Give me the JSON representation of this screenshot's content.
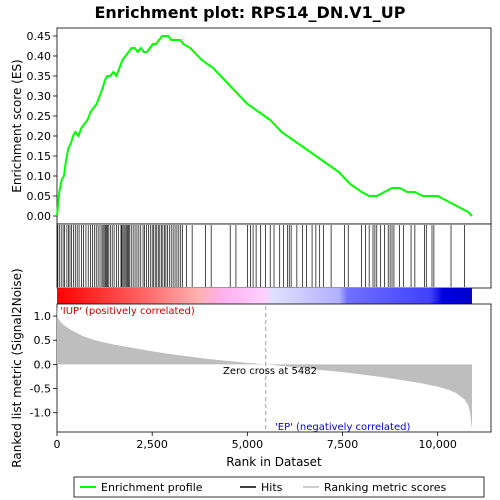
{
  "chart_data": {
    "type": "line",
    "title": "Enrichment plot: RPS14_DN.V1_UP",
    "colors": {
      "enrichment_line": "#00ff00",
      "hits": "#000000",
      "metric_fill": "#bebebe",
      "zero_line": "#a0a0a0",
      "pos_label": "#cc0000",
      "neg_label": "#0000cc"
    },
    "es_panel": {
      "ylabel": "Enrichment score (ES)",
      "ylim": [
        -0.02,
        0.47
      ],
      "yticks": [
        "0.00",
        "0.05",
        "0.10",
        "0.15",
        "0.20",
        "0.25",
        "0.30",
        "0.35",
        "0.40",
        "0.45"
      ],
      "ytick_values": [
        0.0,
        0.05,
        0.1,
        0.15,
        0.2,
        0.25,
        0.3,
        0.35,
        0.4,
        0.45
      ],
      "series": [
        {
          "x": [
            0,
            60,
            120,
            180,
            240,
            300,
            360,
            420,
            480,
            560,
            640,
            720,
            800,
            880,
            960,
            1040,
            1120,
            1200,
            1260,
            1320,
            1400,
            1480,
            1560,
            1640,
            1720,
            1800,
            1880,
            1960,
            2040,
            2120,
            2200,
            2280,
            2360,
            2440,
            2520,
            2600,
            2680,
            2760,
            2840,
            2920,
            3000,
            3080,
            3160,
            3240,
            3320,
            3500,
            3800,
            4100,
            4400,
            4700,
            5000,
            5300,
            5600,
            5900,
            6200,
            6500,
            6800,
            7100,
            7400,
            7700,
            8000,
            8200,
            8400,
            8600,
            8800,
            9000,
            9200,
            9400,
            9600,
            9800,
            10000,
            10200,
            10400,
            10600,
            10800,
            10900
          ],
          "y": [
            0.0,
            0.06,
            0.09,
            0.1,
            0.14,
            0.17,
            0.18,
            0.2,
            0.21,
            0.2,
            0.22,
            0.23,
            0.24,
            0.26,
            0.27,
            0.28,
            0.3,
            0.32,
            0.34,
            0.35,
            0.35,
            0.36,
            0.35,
            0.37,
            0.39,
            0.4,
            0.41,
            0.42,
            0.42,
            0.41,
            0.42,
            0.41,
            0.41,
            0.42,
            0.43,
            0.43,
            0.44,
            0.45,
            0.45,
            0.45,
            0.44,
            0.44,
            0.44,
            0.44,
            0.43,
            0.42,
            0.39,
            0.37,
            0.34,
            0.31,
            0.28,
            0.26,
            0.24,
            0.21,
            0.19,
            0.17,
            0.15,
            0.13,
            0.11,
            0.08,
            0.06,
            0.05,
            0.05,
            0.06,
            0.07,
            0.07,
            0.06,
            0.06,
            0.05,
            0.05,
            0.05,
            0.04,
            0.03,
            0.02,
            0.01,
            0.0
          ]
        }
      ]
    },
    "hits": [
      20,
      60,
      110,
      160,
      200,
      260,
      300,
      340,
      380,
      430,
      480,
      530,
      580,
      640,
      700,
      760,
      820,
      880,
      930,
      980,
      1030,
      1080,
      1130,
      1180,
      1210,
      1240,
      1270,
      1300,
      1330,
      1360,
      1400,
      1450,
      1500,
      1560,
      1620,
      1680,
      1700,
      1730,
      1760,
      1790,
      1820,
      1850,
      1880,
      1910,
      1950,
      2000,
      2050,
      2100,
      2150,
      2200,
      2260,
      2300,
      2350,
      2400,
      2450,
      2500,
      2540,
      2580,
      2620,
      2660,
      2700,
      2740,
      2780,
      2820,
      2860,
      2900,
      2950,
      3000,
      3050,
      3100,
      3150,
      3200,
      3250,
      3300,
      3400,
      3550,
      3900,
      4050,
      4550,
      4700,
      5000,
      5080,
      5150,
      5230,
      5350,
      5480,
      5600,
      5700,
      5850,
      5950,
      6050,
      6100,
      6150,
      6300,
      6450,
      6550,
      6700,
      6800,
      6900,
      7000,
      7200,
      7550,
      7650,
      8000,
      8100,
      8200,
      8300,
      8350,
      8400,
      8500,
      8600,
      8700,
      8750,
      8800,
      8850,
      9000,
      9100,
      9300,
      9400,
      9650,
      9700,
      9850,
      9900,
      10350,
      10700
    ],
    "ranked_panel": {
      "ylabel": "Ranked list metric (Signal2Noise)",
      "ylim": [
        -1.4,
        1.25
      ],
      "yticks": [
        "1.0",
        "0.5",
        "0.0",
        "-0.5",
        "-1.0"
      ],
      "ytick_values": [
        1.0,
        0.5,
        0.0,
        -0.5,
        -1.0
      ],
      "metric_x": [
        0,
        30,
        100,
        200,
        400,
        700,
        1000,
        1500,
        2000,
        2500,
        3000,
        3500,
        4000,
        4500,
        5000,
        5482,
        6000,
        6500,
        7000,
        7500,
        8000,
        8500,
        9000,
        9500,
        10000,
        10300,
        10500,
        10700,
        10800,
        10850,
        10900
      ],
      "metric_y": [
        1.2,
        0.95,
        0.87,
        0.8,
        0.7,
        0.58,
        0.5,
        0.41,
        0.34,
        0.27,
        0.21,
        0.16,
        0.11,
        0.07,
        0.03,
        0.0,
        -0.04,
        -0.08,
        -0.12,
        -0.16,
        -0.21,
        -0.26,
        -0.32,
        -0.38,
        -0.46,
        -0.53,
        -0.6,
        -0.72,
        -0.85,
        -1.0,
        -1.35
      ],
      "pos_label": "'IUP' (positively correlated)",
      "neg_label": "'EP' (negatively correlated)",
      "zero_cross_label": "Zero cross at 5482",
      "zero_cross": 5482
    },
    "xlabel": "Rank in Dataset",
    "xlim": [
      0,
      11400
    ],
    "xticks": [
      "0",
      "2,500",
      "5,000",
      "7,500",
      "10,000"
    ],
    "xtick_values": [
      0,
      2500,
      5000,
      7500,
      10000
    ],
    "n_genes": 10900,
    "legend": {
      "placement": "bottom",
      "entries": [
        "Enrichment profile",
        "Hits",
        "Ranking metric scores"
      ]
    }
  }
}
